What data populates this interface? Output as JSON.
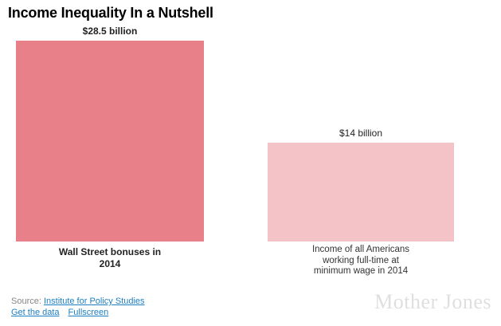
{
  "title": "Income Inequality In a Nutshell",
  "chart_data": {
    "type": "bar",
    "title": "Income Inequality In a Nutshell",
    "categories": [
      "Wall Street bonuses in 2014",
      "Income of all Americans working full-time at minimum wage in 2014"
    ],
    "values": [
      28.5,
      14
    ],
    "value_labels": [
      "$28.5 billion",
      "$14 billion"
    ],
    "unit": "billions of US dollars",
    "ylim": [
      0,
      28.5
    ],
    "grid": false,
    "legend": "none",
    "bar_colors": [
      "#e8808a",
      "#f4c3c8"
    ]
  },
  "bars": [
    {
      "value_label": "$28.5 billion",
      "line1": "Wall Street bonuses in",
      "line2": "2014"
    },
    {
      "value_label": "$14 billion",
      "line1": "Income of all Americans",
      "line2": "working full-time at",
      "line3": "minimum wage in 2014"
    }
  ],
  "footer": {
    "source_prefix": "Source:",
    "source_link_label": "Institute for Policy Studies",
    "get_data_label": "Get the data",
    "fullscreen_label": "Fullscreen",
    "brand": "Mother Jones"
  },
  "colors": {
    "bar_primary": "#e8808a",
    "bar_secondary": "#f4c3c8",
    "link_blue": "#1d7fc1",
    "source_gray": "#858585",
    "brand_gray": "#dfdfdf",
    "title_black": "#000000"
  }
}
